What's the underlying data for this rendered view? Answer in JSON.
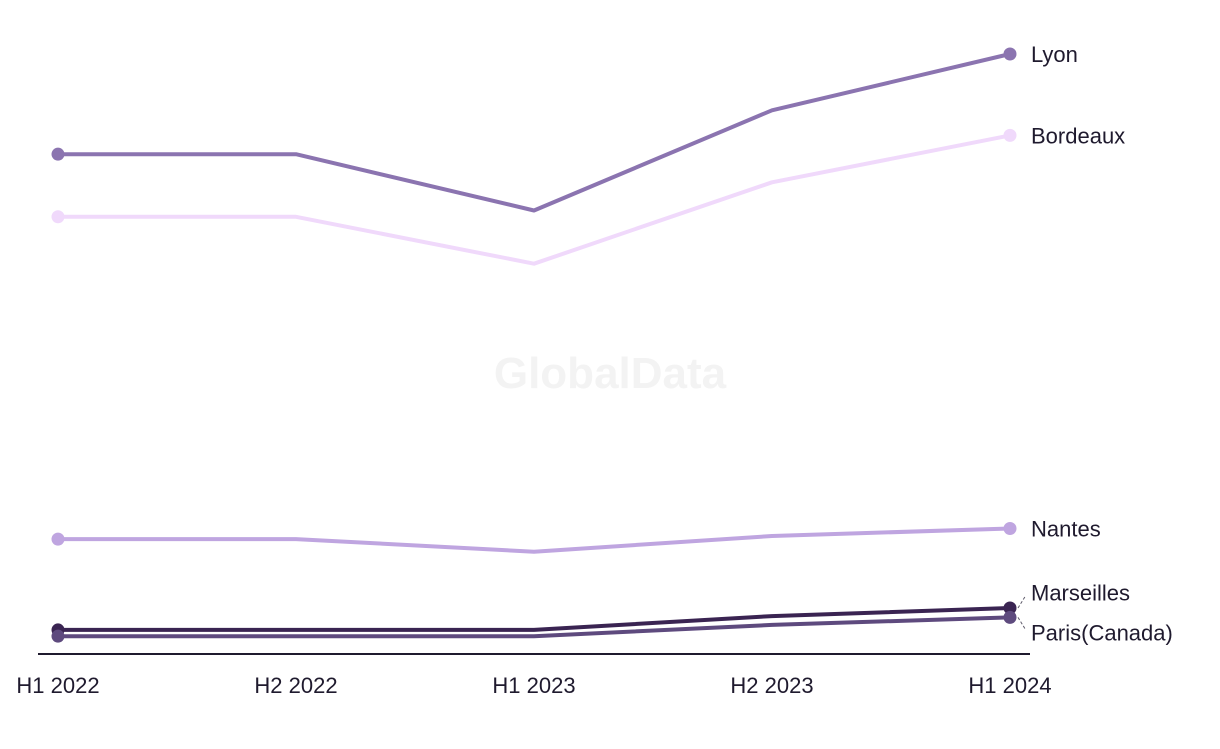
{
  "watermark": "GlobalData",
  "chart_data": {
    "type": "line",
    "title": "",
    "xlabel": "",
    "ylabel": "",
    "categories": [
      "H1 2022",
      "H2 2022",
      "H1 2023",
      "H2 2023",
      "H1 2024"
    ],
    "ylim": [
      0,
      100
    ],
    "grid": false,
    "legend": "end-of-line labels (right)",
    "series": [
      {
        "name": "Lyon",
        "color": "#8b74b0",
        "values": [
          84,
          84,
          75,
          91,
          100
        ]
      },
      {
        "name": "Bordeaux",
        "color": "#f0d9fb",
        "values": [
          74,
          74,
          66.5,
          79.5,
          87
        ]
      },
      {
        "name": "Nantes",
        "color": "#bfa5e0",
        "values": [
          22.5,
          22.5,
          20.5,
          23,
          24.2
        ]
      },
      {
        "name": "Marseilles",
        "color": "#3a2452",
        "values": [
          8,
          8,
          8,
          10.2,
          11.5
        ]
      },
      {
        "name": "Paris(Canada)",
        "color": "#5e4a7e",
        "values": [
          7,
          7,
          7,
          8.8,
          10
        ]
      }
    ]
  }
}
